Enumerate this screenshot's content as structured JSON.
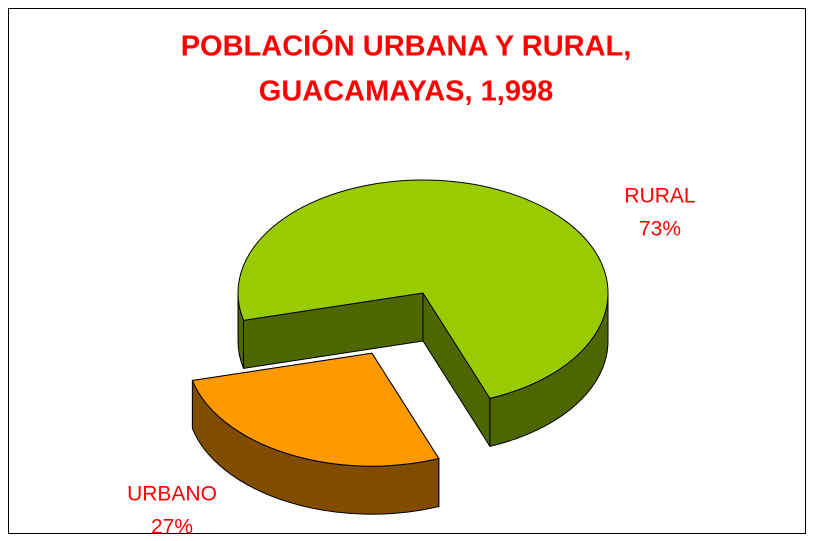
{
  "chart_data": {
    "type": "pie",
    "title": [
      "POBLACIÓN URBANA Y RURAL,",
      "GUACAMAYAS, 1,998"
    ],
    "categories": [
      "RURAL",
      "URBANO"
    ],
    "values": [
      73,
      27
    ],
    "value_labels": [
      "73%",
      "27%"
    ],
    "colors": [
      "#99cc00",
      "#ff9900"
    ],
    "side_colors": [
      "#4d6600",
      "#804d00"
    ]
  }
}
